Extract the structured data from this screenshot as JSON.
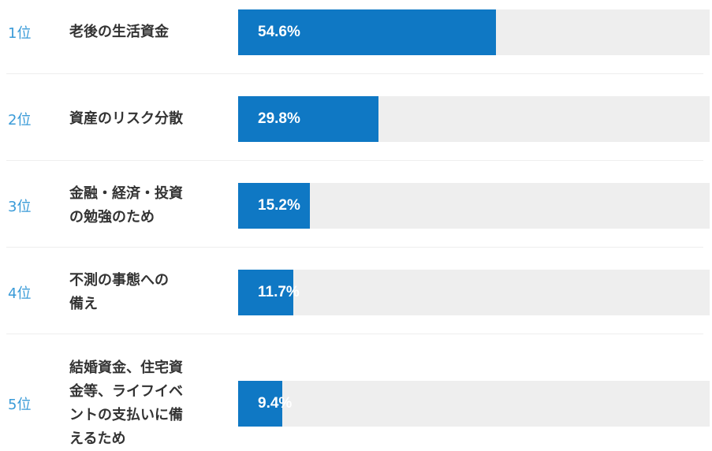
{
  "chart_data": {
    "type": "bar",
    "orientation": "horizontal",
    "xlim": [
      0,
      100
    ],
    "series": [
      {
        "values": [
          54.6,
          29.8,
          15.2,
          11.7,
          9.4
        ],
        "value_labels": [
          "54.6%",
          "29.8%",
          "15.2%",
          "11.7%",
          "9.4%"
        ]
      }
    ],
    "items": [
      {
        "rank": "1位",
        "label_lines": [
          "老後の生活資金"
        ],
        "value": 54.6,
        "value_label": "54.6%"
      },
      {
        "rank": "2位",
        "label_lines": [
          "資産のリスク分散"
        ],
        "value": 29.8,
        "value_label": "29.8%"
      },
      {
        "rank": "3位",
        "label_lines": [
          "金融・経済・投資",
          "の勉強のため"
        ],
        "value": 15.2,
        "value_label": "15.2%"
      },
      {
        "rank": "4位",
        "label_lines": [
          "不測の事態への",
          "備え"
        ],
        "value": 11.7,
        "value_label": "11.7%"
      },
      {
        "rank": "5位",
        "label_lines": [
          "結婚資金、住宅資",
          "金等、ライフイベ",
          "ントの支払いに備",
          "えるため"
        ],
        "value": 9.4,
        "value_label": "9.4%"
      }
    ],
    "colors": {
      "bar": "#0f78c4",
      "track": "#eeeeee",
      "rank": "#3a9bd8",
      "label": "#333333"
    }
  }
}
